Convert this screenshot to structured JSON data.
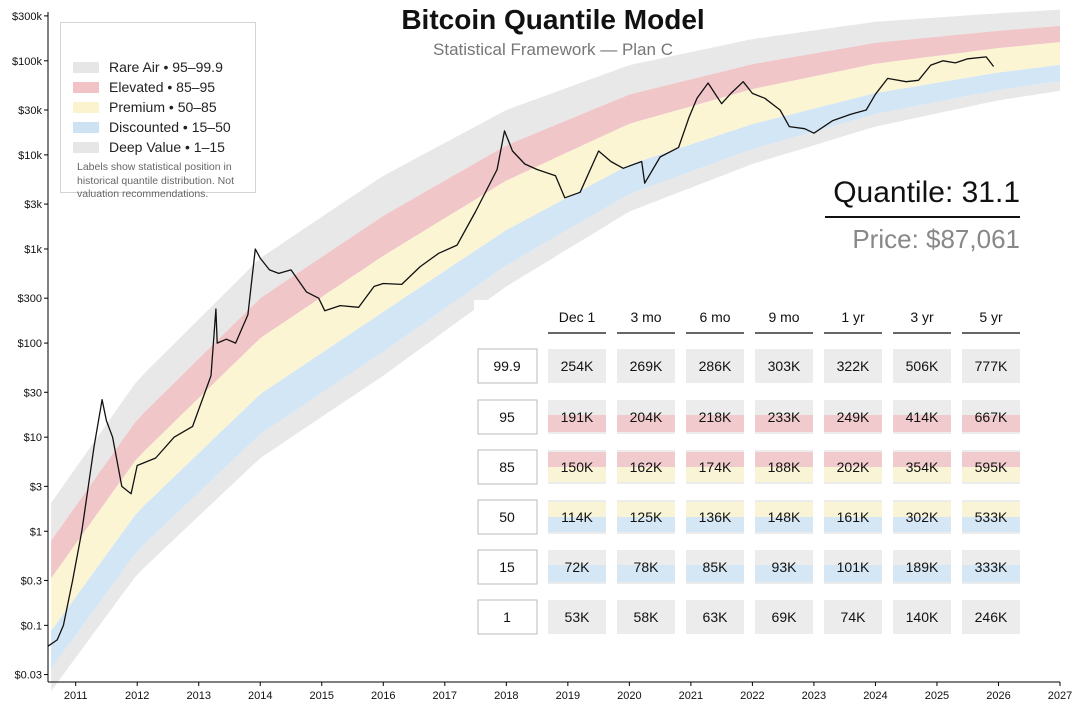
{
  "title": "Bitcoin Quantile Model",
  "subtitle": "Statistical Framework — Plan C",
  "legend": {
    "items": [
      {
        "label": "Rare Air • 95–99.9",
        "color": "#e6e6e6"
      },
      {
        "label": "Elevated • 85–95",
        "color": "#f1c3c6"
      },
      {
        "label": "Premium • 50–85",
        "color": "#fbf3cd"
      },
      {
        "label": "Discounted • 15–50",
        "color": "#cde3f4"
      },
      {
        "label": "Deep Value • 1–15",
        "color": "#e6e6e6"
      }
    ],
    "note": "Labels show statistical position in historical quantile distribution. Not valuation recommendations."
  },
  "readout": {
    "quantile": "Quantile: 31.1",
    "price": "Price: $87,061"
  },
  "colors": {
    "rare_air": "#e8e8e8",
    "elevated": "#f1c6c9",
    "premium": "#fcf5d4",
    "discounted": "#d3e6f5",
    "deep_value": "#e8e8e8",
    "price_line": "#111111",
    "table_cell": "#ececec"
  },
  "chart_data": {
    "type": "line",
    "y_scale": "log",
    "ylim": [
      0.025,
      330000
    ],
    "xlim": [
      2010.55,
      2027
    ],
    "y_ticks": [
      {
        "v": 300000,
        "label": "$300k"
      },
      {
        "v": 100000,
        "label": "$100k"
      },
      {
        "v": 30000,
        "label": "$30k"
      },
      {
        "v": 10000,
        "label": "$10k"
      },
      {
        "v": 3000,
        "label": "$3k"
      },
      {
        "v": 1000,
        "label": "$1k"
      },
      {
        "v": 300,
        "label": "$300"
      },
      {
        "v": 100,
        "label": "$100"
      },
      {
        "v": 30,
        "label": "$30"
      },
      {
        "v": 10,
        "label": "$10"
      },
      {
        "v": 3,
        "label": "$3"
      },
      {
        "v": 1,
        "label": "$1"
      },
      {
        "v": 0.3,
        "label": "$0.3"
      },
      {
        "v": 0.1,
        "label": "$0.1"
      },
      {
        "v": 0.03,
        "label": "$0.03"
      }
    ],
    "x_ticks": [
      "2011",
      "2012",
      "2013",
      "2014",
      "2015",
      "2016",
      "2017",
      "2018",
      "2019",
      "2020",
      "2021",
      "2022",
      "2023",
      "2024",
      "2025",
      "2026",
      "2027"
    ],
    "bands": [
      {
        "name": "Rare Air",
        "x": [
          2010.6,
          2012,
          2014,
          2016,
          2018,
          2020,
          2022,
          2024,
          2026,
          2027
        ],
        "lower": [
          0.55,
          9,
          180,
          1600,
          9000,
          30000,
          65000,
          120000,
          190000,
          230000
        ],
        "upper": [
          2,
          40,
          800,
          6000,
          30000,
          90000,
          170000,
          260000,
          320000,
          350000
        ]
      },
      {
        "name": "Deep Value",
        "x": [
          2010.6,
          2012,
          2014,
          2016,
          2018,
          2020,
          2022,
          2024,
          2026,
          2027
        ],
        "lower": [
          0.02,
          0.35,
          6,
          45,
          400,
          2500,
          8000,
          20000,
          38000,
          48000
        ],
        "upper": [
          0.06,
          1.2,
          20,
          180,
          1400,
          6500,
          18000,
          38000,
          65000,
          80000
        ]
      }
    ],
    "series": [
      {
        "x": [
          2010.55,
          2010.7,
          2010.8,
          2010.95,
          2011.1,
          2011.3,
          2011.43,
          2011.5,
          2011.6,
          2011.75,
          2011.9,
          2012.0,
          2012.3,
          2012.6,
          2012.9,
          2013.2,
          2013.28,
          2013.3,
          2013.45,
          2013.6,
          2013.8,
          2013.92,
          2014.0,
          2014.15,
          2014.3,
          2014.5,
          2014.75,
          2014.95,
          2015.05,
          2015.3,
          2015.6,
          2015.85,
          2016.0,
          2016.3,
          2016.6,
          2016.9,
          2017.2,
          2017.5,
          2017.7,
          2017.85,
          2017.97,
          2018.1,
          2018.3,
          2018.5,
          2018.8,
          2018.95,
          2019.2,
          2019.5,
          2019.7,
          2019.9,
          2020.2,
          2020.25,
          2020.5,
          2020.8,
          2020.97,
          2021.1,
          2021.28,
          2021.5,
          2021.65,
          2021.85,
          2022.0,
          2022.2,
          2022.45,
          2022.6,
          2022.85,
          2023.0,
          2023.3,
          2023.6,
          2023.85,
          2024.0,
          2024.2,
          2024.5,
          2024.7,
          2024.9,
          2025.1,
          2025.3,
          2025.5,
          2025.8,
          2025.92
        ],
        "values": [
          0.06,
          0.07,
          0.1,
          0.3,
          1,
          8,
          25,
          15,
          10,
          3,
          2.5,
          5,
          6,
          10,
          13,
          45,
          230,
          100,
          110,
          100,
          200,
          1000,
          800,
          600,
          550,
          600,
          350,
          300,
          220,
          250,
          240,
          400,
          430,
          420,
          650,
          900,
          1100,
          2500,
          4500,
          7000,
          18000,
          11000,
          8000,
          7000,
          6000,
          3500,
          4000,
          11000,
          8500,
          7200,
          8500,
          5000,
          9500,
          12000,
          25000,
          40000,
          58000,
          35000,
          45000,
          60000,
          45000,
          40000,
          30000,
          20000,
          19000,
          17000,
          23000,
          27000,
          30000,
          44000,
          65000,
          60000,
          62000,
          90000,
          100000,
          95000,
          105000,
          110000,
          87061
        ]
      }
    ]
  },
  "forecast_table": {
    "columns": [
      "Dec 1",
      "3 mo",
      "6 mo",
      "9 mo",
      "1 yr",
      "3 yr",
      "5 yr"
    ],
    "rows": [
      {
        "quantile": "99.9",
        "values": [
          "254K",
          "269K",
          "286K",
          "303K",
          "322K",
          "506K",
          "777K"
        ]
      },
      {
        "quantile": "95",
        "values": [
          "191K",
          "204K",
          "218K",
          "233K",
          "249K",
          "414K",
          "667K"
        ]
      },
      {
        "quantile": "85",
        "values": [
          "150K",
          "162K",
          "174K",
          "188K",
          "202K",
          "354K",
          "595K"
        ]
      },
      {
        "quantile": "50",
        "values": [
          "114K",
          "125K",
          "136K",
          "148K",
          "161K",
          "302K",
          "533K"
        ]
      },
      {
        "quantile": "15",
        "values": [
          "72K",
          "78K",
          "85K",
          "93K",
          "101K",
          "189K",
          "333K"
        ]
      },
      {
        "quantile": "1",
        "values": [
          "53K",
          "58K",
          "63K",
          "69K",
          "74K",
          "140K",
          "246K"
        ]
      }
    ]
  }
}
